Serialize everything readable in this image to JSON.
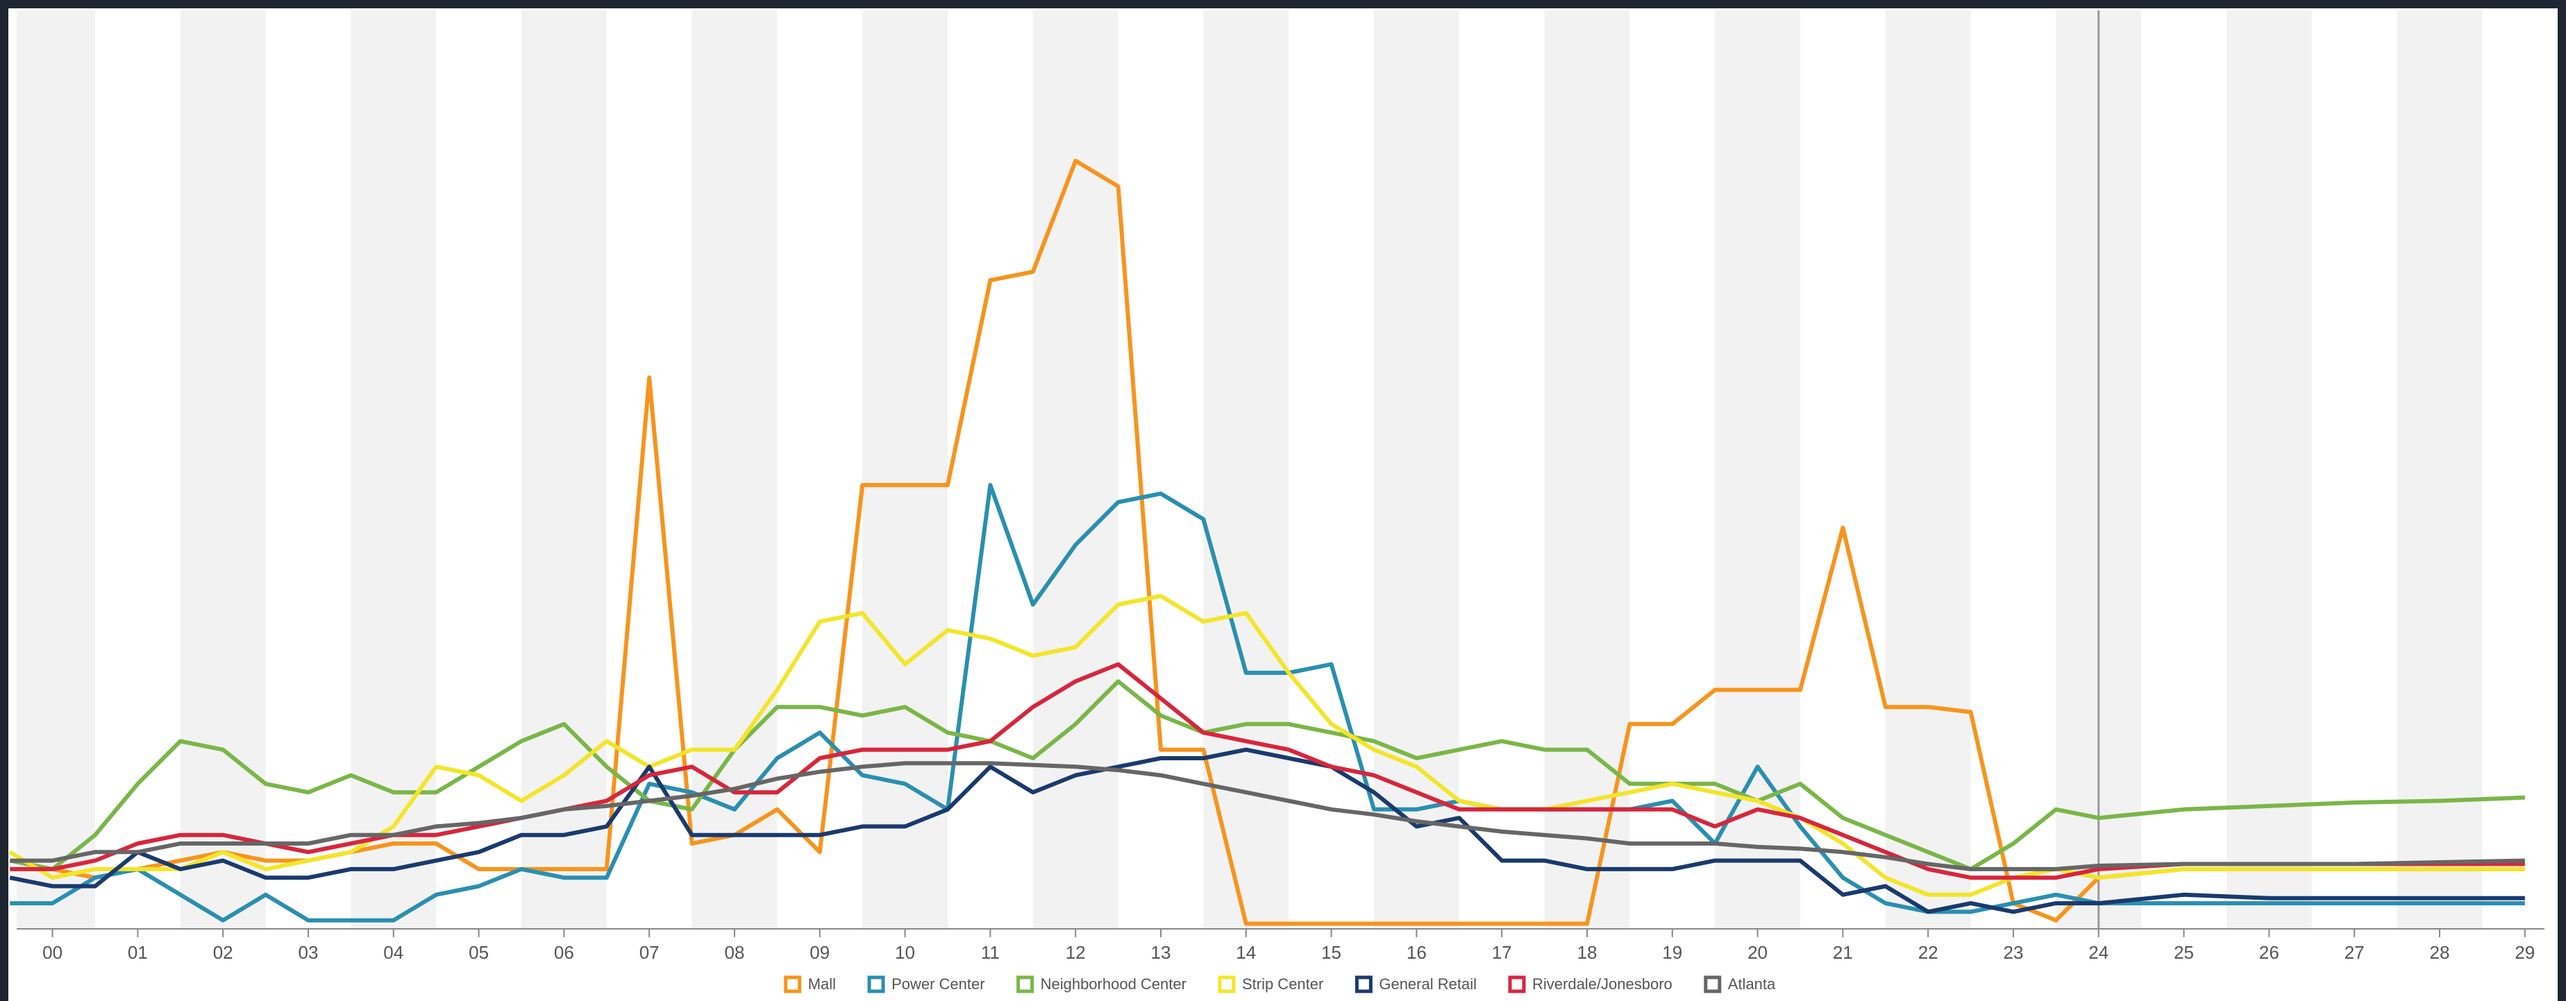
{
  "chart_data": {
    "type": "line",
    "x": [
      -0.5,
      0,
      0.5,
      1,
      1.5,
      2,
      2.5,
      3,
      3.5,
      4,
      4.5,
      5,
      5.5,
      6,
      6.5,
      7,
      7.5,
      8,
      8.5,
      9,
      9.5,
      10,
      10.5,
      11,
      11.5,
      12,
      12.5,
      13,
      13.5,
      14,
      14.5,
      15,
      15.5,
      16,
      16.5,
      17,
      17.5,
      18,
      18.5,
      19,
      19.5,
      20,
      20.5,
      21,
      21.5,
      22,
      22.5,
      23,
      23.5,
      24,
      25,
      26,
      27,
      28,
      29
    ],
    "xlim": [
      -0.42,
      29.23
    ],
    "xticks": [
      {
        "value": 0,
        "label": "00"
      },
      {
        "value": 1,
        "label": "01"
      },
      {
        "value": 2,
        "label": "02"
      },
      {
        "value": 3,
        "label": "03"
      },
      {
        "value": 4,
        "label": "04"
      },
      {
        "value": 5,
        "label": "05"
      },
      {
        "value": 6,
        "label": "06"
      },
      {
        "value": 7,
        "label": "07"
      },
      {
        "value": 8,
        "label": "08"
      },
      {
        "value": 9,
        "label": "09"
      },
      10,
      11,
      12,
      13,
      14,
      15,
      16,
      17,
      18,
      19,
      20,
      21,
      22,
      23,
      24,
      25,
      26,
      27,
      28,
      29
    ],
    "ylim": [
      0,
      5.3
    ],
    "series": [
      {
        "name": "Mall",
        "color": "#f7941d",
        "values": [
          0.4,
          0.35,
          0.3,
          0.35,
          0.4,
          0.45,
          0.4,
          0.4,
          0.45,
          0.5,
          0.5,
          0.35,
          0.35,
          0.35,
          0.35,
          3.23,
          0.5,
          0.55,
          0.7,
          0.45,
          2.6,
          2.6,
          2.6,
          3.8,
          3.85,
          4.5,
          4.35,
          1.05,
          1.05,
          0.03,
          0.03,
          0.03,
          0.03,
          0.03,
          0.03,
          0.03,
          0.03,
          0.03,
          1.2,
          1.2,
          1.4,
          1.4,
          1.4,
          2.35,
          1.3,
          1.3,
          1.27,
          0.15,
          0.05,
          0.3,
          0.35,
          0.35,
          0.35,
          0.35,
          0.35
        ]
      },
      {
        "name": "Power Center",
        "color": "#2a8fb0",
        "values": [
          0.15,
          0.15,
          0.3,
          0.35,
          0.2,
          0.05,
          0.2,
          0.05,
          0.05,
          0.05,
          0.2,
          0.25,
          0.35,
          0.3,
          0.3,
          0.85,
          0.8,
          0.7,
          1.0,
          1.15,
          0.9,
          0.85,
          0.7,
          2.6,
          1.9,
          2.25,
          2.5,
          2.55,
          2.4,
          1.5,
          1.5,
          1.55,
          0.7,
          0.7,
          0.75,
          0.7,
          0.7,
          0.7,
          0.7,
          0.75,
          0.5,
          0.95,
          0.6,
          0.3,
          0.15,
          0.1,
          0.1,
          0.15,
          0.2,
          0.15,
          0.15,
          0.15,
          0.15,
          0.15,
          0.15
        ]
      },
      {
        "name": "Neighborhood Center",
        "color": "#7ab648",
        "values": [
          0.4,
          0.35,
          0.55,
          0.85,
          1.1,
          1.05,
          0.85,
          0.8,
          0.9,
          0.8,
          0.8,
          0.95,
          1.1,
          1.2,
          0.95,
          0.75,
          0.7,
          1.05,
          1.3,
          1.3,
          1.25,
          1.3,
          1.15,
          1.1,
          1.0,
          1.2,
          1.45,
          1.25,
          1.15,
          1.2,
          1.2,
          1.15,
          1.1,
          1.0,
          1.05,
          1.1,
          1.05,
          1.05,
          0.85,
          0.85,
          0.85,
          0.75,
          0.85,
          0.65,
          0.55,
          0.45,
          0.35,
          0.5,
          0.7,
          0.65,
          0.7,
          0.72,
          0.74,
          0.75,
          0.77
        ]
      },
      {
        "name": "Strip Center",
        "color": "#f3e52a",
        "values": [
          0.45,
          0.3,
          0.35,
          0.35,
          0.35,
          0.45,
          0.35,
          0.4,
          0.45,
          0.6,
          0.95,
          0.9,
          0.75,
          0.9,
          1.1,
          0.95,
          1.05,
          1.05,
          1.4,
          1.8,
          1.85,
          1.55,
          1.75,
          1.7,
          1.6,
          1.65,
          1.9,
          1.95,
          1.8,
          1.85,
          1.5,
          1.2,
          1.05,
          0.95,
          0.75,
          0.7,
          0.7,
          0.75,
          0.8,
          0.85,
          0.8,
          0.75,
          0.65,
          0.5,
          0.3,
          0.2,
          0.2,
          0.3,
          0.35,
          0.3,
          0.35,
          0.35,
          0.35,
          0.35,
          0.35
        ]
      },
      {
        "name": "General Retail",
        "color": "#1a3a6e",
        "values": [
          0.3,
          0.25,
          0.25,
          0.45,
          0.35,
          0.4,
          0.3,
          0.3,
          0.35,
          0.35,
          0.4,
          0.45,
          0.55,
          0.55,
          0.6,
          0.95,
          0.55,
          0.55,
          0.55,
          0.55,
          0.6,
          0.6,
          0.7,
          0.95,
          0.8,
          0.9,
          0.95,
          1.0,
          1.0,
          1.05,
          1.0,
          0.95,
          0.8,
          0.6,
          0.65,
          0.4,
          0.4,
          0.35,
          0.35,
          0.35,
          0.4,
          0.4,
          0.4,
          0.2,
          0.25,
          0.1,
          0.15,
          0.1,
          0.15,
          0.15,
          0.2,
          0.18,
          0.18,
          0.18,
          0.18
        ]
      },
      {
        "name": "Riverdale/Jonesboro",
        "color": "#d7263d",
        "values": [
          0.35,
          0.35,
          0.4,
          0.5,
          0.55,
          0.55,
          0.5,
          0.45,
          0.5,
          0.55,
          0.55,
          0.6,
          0.65,
          0.7,
          0.75,
          0.9,
          0.95,
          0.8,
          0.8,
          1.0,
          1.05,
          1.05,
          1.05,
          1.1,
          1.3,
          1.45,
          1.55,
          1.35,
          1.15,
          1.1,
          1.05,
          0.95,
          0.9,
          0.8,
          0.7,
          0.7,
          0.7,
          0.7,
          0.7,
          0.7,
          0.6,
          0.7,
          0.65,
          0.55,
          0.45,
          0.35,
          0.3,
          0.3,
          0.3,
          0.35,
          0.38,
          0.38,
          0.38,
          0.38,
          0.38
        ]
      },
      {
        "name": "Atlanta",
        "color": "#666666",
        "values": [
          0.4,
          0.4,
          0.45,
          0.45,
          0.5,
          0.5,
          0.5,
          0.5,
          0.55,
          0.55,
          0.6,
          0.62,
          0.65,
          0.7,
          0.72,
          0.75,
          0.78,
          0.82,
          0.88,
          0.92,
          0.95,
          0.97,
          0.97,
          0.97,
          0.96,
          0.95,
          0.93,
          0.9,
          0.85,
          0.8,
          0.75,
          0.7,
          0.67,
          0.63,
          0.6,
          0.57,
          0.55,
          0.53,
          0.5,
          0.5,
          0.5,
          0.48,
          0.47,
          0.45,
          0.42,
          0.38,
          0.35,
          0.35,
          0.35,
          0.37,
          0.38,
          0.38,
          0.38,
          0.39,
          0.4
        ]
      }
    ]
  }
}
